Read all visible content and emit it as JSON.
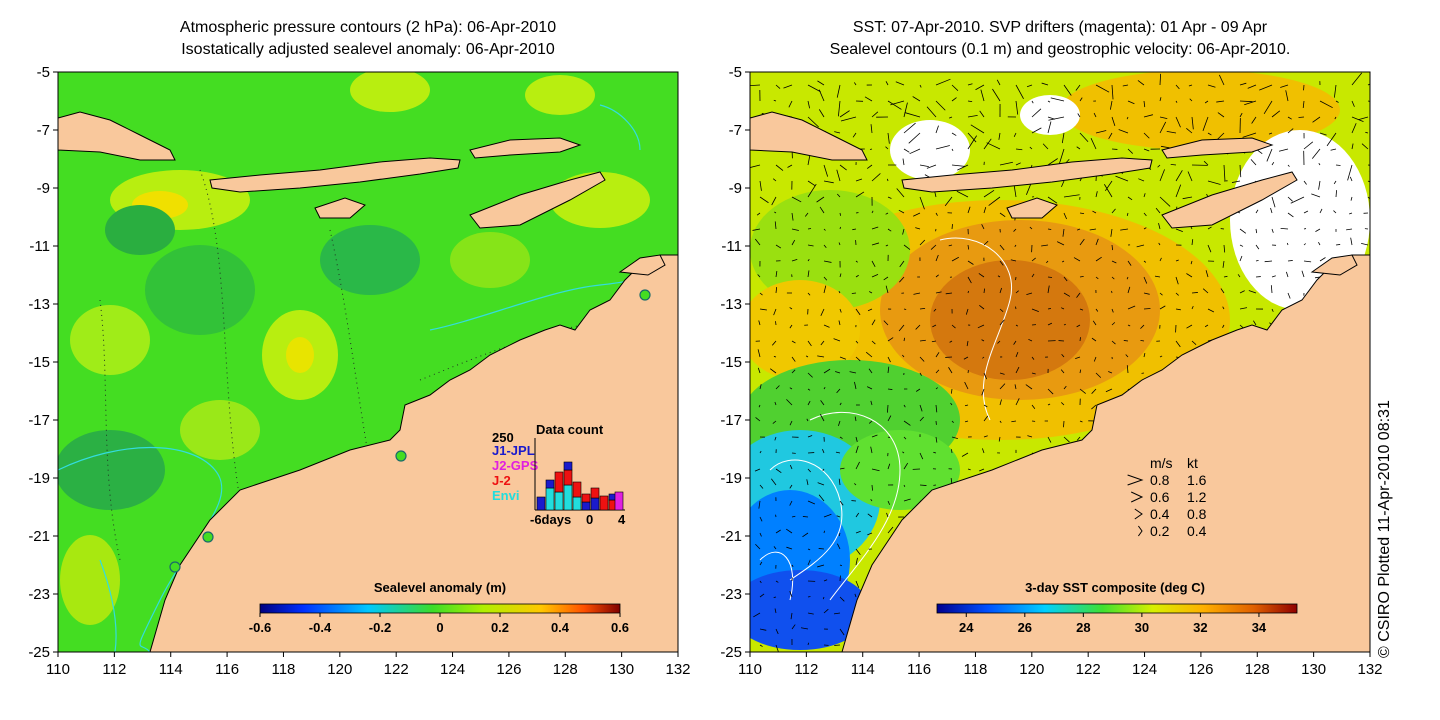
{
  "left_panel": {
    "title_line1": "Atmospheric pressure contours (2 hPa): 06-Apr-2010",
    "title_line2": "Isostatically adjusted sealevel anomaly: 06-Apr-2010",
    "colorbar": {
      "label": "Sealevel anomaly (m)",
      "ticks": [
        "-0.6",
        "-0.4",
        "-0.2",
        "0",
        "0.2",
        "0.4",
        "0.6"
      ],
      "range": [
        -0.6,
        0.6
      ]
    },
    "data_count": {
      "title": "Data count",
      "max_label": "250",
      "legend": [
        {
          "label": "J1-JPL",
          "color": "#1a1acc"
        },
        {
          "label": "J2-GPS",
          "color": "#e020e0"
        },
        {
          "label": "J-2",
          "color": "#ee1111"
        },
        {
          "label": "Envi",
          "color": "#22dddd"
        }
      ],
      "x_ticks": [
        "-6days",
        "0",
        "4"
      ]
    }
  },
  "right_panel": {
    "title_line1": "SST: 07-Apr-2010. SVP drifters (magenta): 01 Apr - 09 Apr",
    "title_line2": "Sealevel contours (0.1 m) and geostrophic velocity: 06-Apr-2010.",
    "colorbar": {
      "label": "3-day SST composite (deg C)",
      "ticks": [
        "24",
        "26",
        "28",
        "30",
        "32",
        "34"
      ],
      "range": [
        23,
        35.3
      ]
    },
    "velocity_key": {
      "header_ms": "m/s",
      "header_kt": "kt",
      "rows": [
        {
          "ms": "0.8",
          "kt": "1.6"
        },
        {
          "ms": "0.6",
          "kt": "1.2"
        },
        {
          "ms": "0.4",
          "kt": "0.8"
        },
        {
          "ms": "0.2",
          "kt": "0.4"
        }
      ]
    }
  },
  "axes": {
    "x_ticks": [
      "110",
      "112",
      "114",
      "116",
      "118",
      "120",
      "122",
      "124",
      "126",
      "128",
      "130",
      "132"
    ],
    "y_ticks": [
      "-5",
      "-7",
      "-9",
      "-11",
      "-13",
      "-15",
      "-17",
      "-19",
      "-21",
      "-23",
      "-25"
    ],
    "lon_range": [
      110,
      132
    ],
    "lat_range": [
      -25,
      -5
    ]
  },
  "credit": "© CSIRO Plotted 11-Apr-2010 08:31",
  "colors": {
    "land": "#f9c89c",
    "coast": "#000000",
    "contour_cyan": "#33dddd",
    "sea_green": "#44dd22"
  }
}
